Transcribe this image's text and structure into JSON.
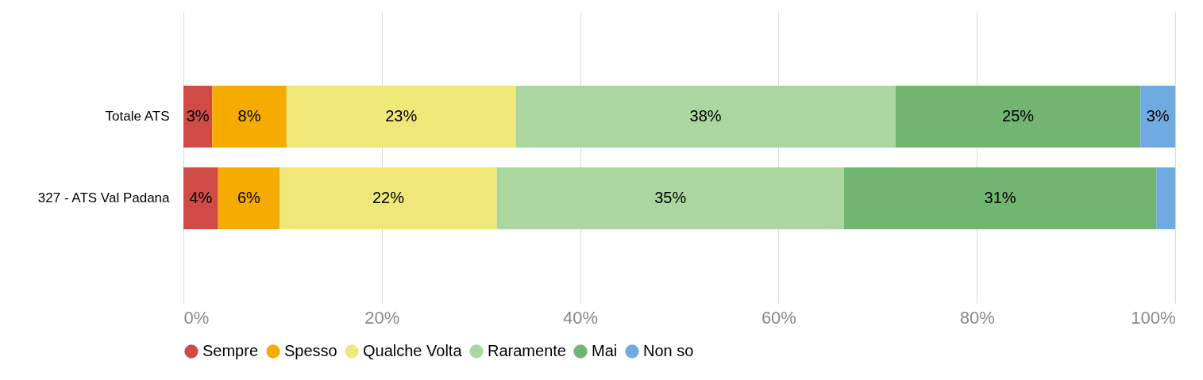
{
  "chart_data": {
    "type": "bar",
    "orientation": "horizontal",
    "stacked": true,
    "categories": [
      "Totale ATS",
      "327 - ATS Val Padana"
    ],
    "series": [
      {
        "name": "Sempre",
        "color": "#d04b45",
        "values": [
          2.9,
          3.5
        ],
        "value_labels": [
          "3%",
          "4%"
        ]
      },
      {
        "name": "Spesso",
        "color": "#f5ab00",
        "values": [
          7.5,
          6.2
        ],
        "value_labels": [
          "8%",
          "6%"
        ]
      },
      {
        "name": "Qualche Volta",
        "color": "#efe878",
        "values": [
          23.1,
          21.9
        ],
        "value_labels": [
          "23%",
          "22%"
        ]
      },
      {
        "name": "Raramente",
        "color": "#acd6a0",
        "values": [
          38.3,
          35.0
        ],
        "value_labels": [
          "38%",
          "35%"
        ]
      },
      {
        "name": "Mai",
        "color": "#70b570",
        "values": [
          24.7,
          31.5
        ],
        "value_labels": [
          "25%",
          "31%"
        ]
      },
      {
        "name": "Non so",
        "color": "#6fabe0",
        "values": [
          3.5,
          1.9
        ],
        "value_labels": [
          "3%",
          null
        ]
      }
    ],
    "xlim": [
      0,
      100
    ],
    "xticks": [
      {
        "value": 0,
        "label": "0%"
      },
      {
        "value": 20,
        "label": "20%"
      },
      {
        "value": 40,
        "label": "40%"
      },
      {
        "value": 60,
        "label": "60%"
      },
      {
        "value": 80,
        "label": "80%"
      },
      {
        "value": 100,
        "label": "100%"
      }
    ],
    "grid": "x",
    "legend": "bottom",
    "marker": "circle"
  }
}
